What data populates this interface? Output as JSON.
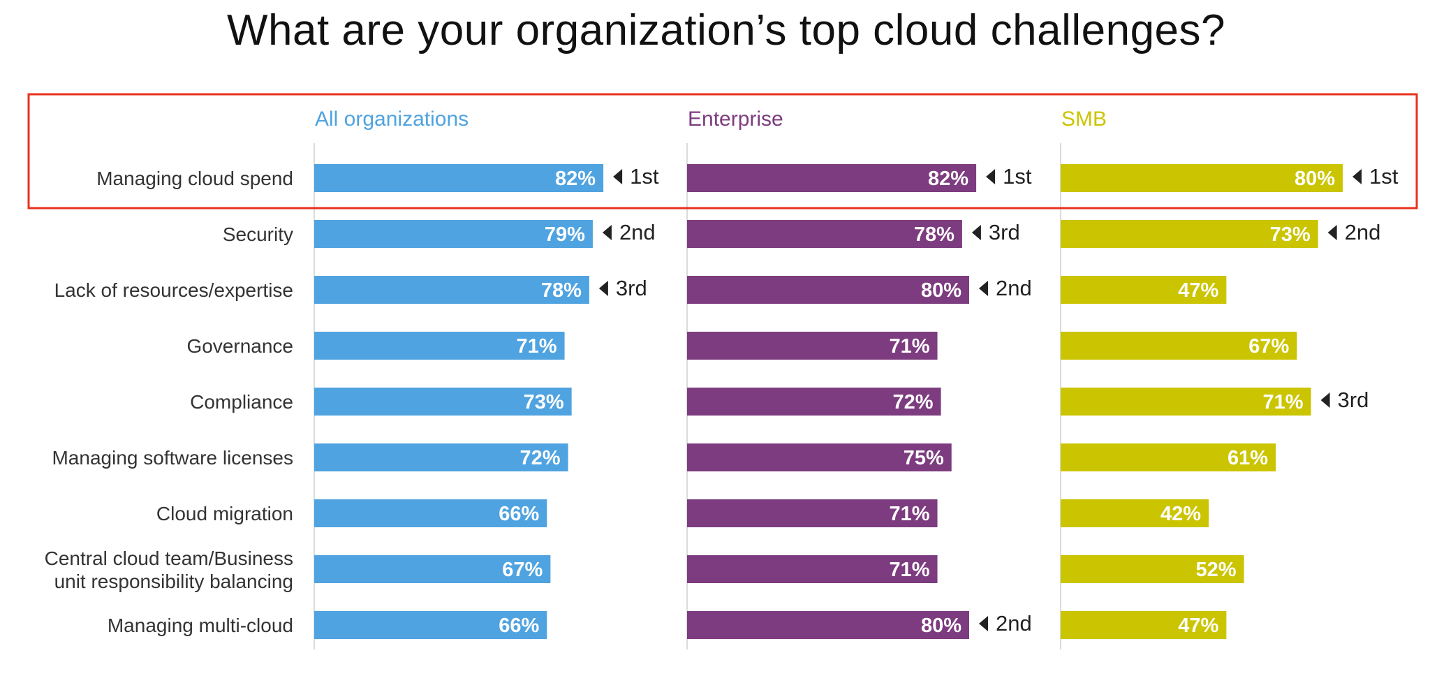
{
  "title": "What are your organization’s top cloud challenges?",
  "chart_data": {
    "type": "bar",
    "orientation": "horizontal",
    "title": "What are your organization’s top cloud challenges?",
    "categories": [
      "Managing cloud spend",
      "Security",
      "Lack of resources/expertise",
      "Governance",
      "Compliance",
      "Managing software licenses",
      "Cloud migration",
      "Central cloud team/Business unit responsibility balancing",
      "Managing multi-cloud"
    ],
    "value_format": "percent",
    "xlim": [
      0,
      100
    ],
    "grid": false,
    "highlight_category": "Managing cloud spend",
    "highlight_color": "#e8321e",
    "series": [
      {
        "name": "All organizations",
        "color": "#4fa3e0",
        "values": [
          82,
          79,
          78,
          71,
          73,
          72,
          66,
          67,
          66
        ],
        "ranks": [
          "1st",
          "2nd",
          "3rd",
          "",
          "",
          "",
          "",
          "",
          ""
        ]
      },
      {
        "name": "Enterprise",
        "color": "#7d3c7f",
        "values": [
          82,
          78,
          80,
          71,
          72,
          75,
          71,
          71,
          80
        ],
        "ranks": [
          "1st",
          "3rd",
          "2nd",
          "",
          "",
          "",
          "",
          "",
          "2nd"
        ]
      },
      {
        "name": "SMB",
        "color": "#cbc400",
        "values": [
          80,
          73,
          47,
          67,
          71,
          61,
          42,
          52,
          47
        ],
        "ranks": [
          "1st",
          "2nd",
          "",
          "",
          "3rd",
          "",
          "",
          "",
          ""
        ]
      }
    ]
  }
}
